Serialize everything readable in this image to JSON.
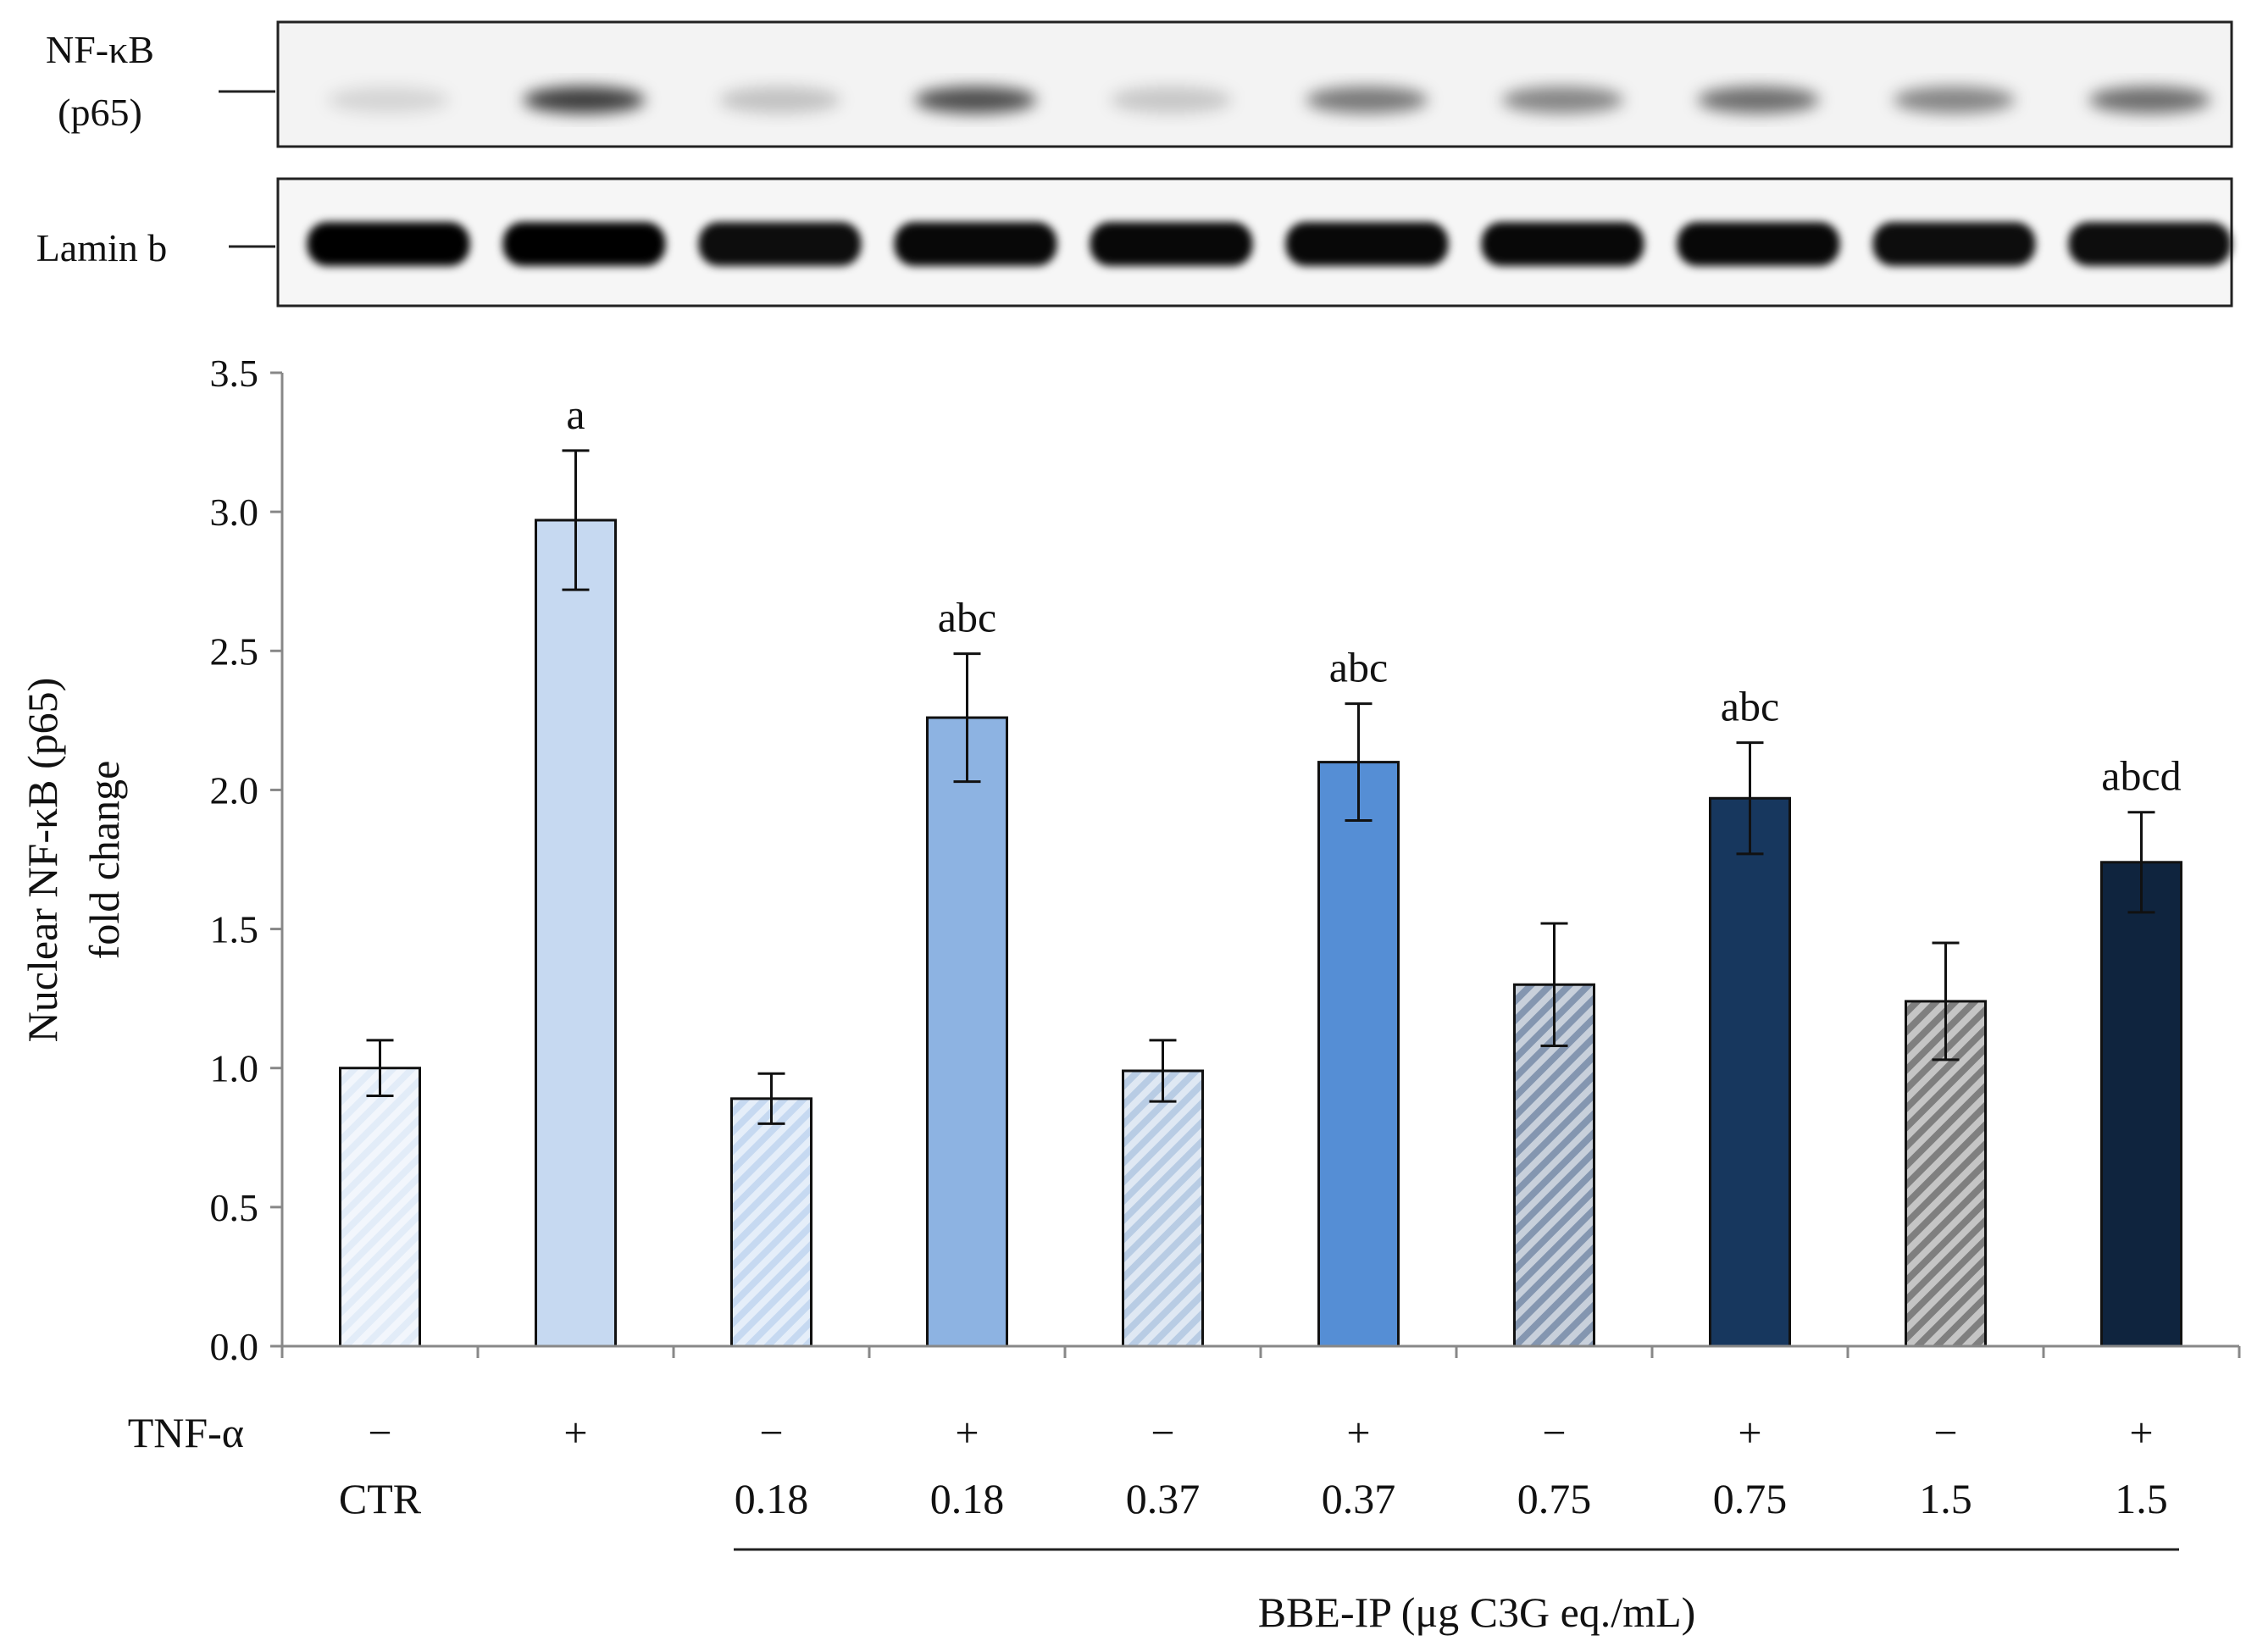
{
  "blots": {
    "nfkb_label_line1": "NF-κB",
    "nfkb_label_line2": "(p65)",
    "lamin_label": "Lamin b",
    "nfkb_band_intensity": [
      0.12,
      0.75,
      0.2,
      0.68,
      0.18,
      0.5,
      0.45,
      0.55,
      0.45,
      0.55
    ],
    "lamin_band_intensity": [
      1,
      1,
      0.95,
      0.97,
      0.97,
      0.97,
      0.97,
      0.97,
      0.95,
      0.95
    ]
  },
  "chart_data": {
    "type": "bar",
    "ylabel_line1": "Nuclear NF-κB (p65)",
    "ylabel_line2": "fold change",
    "ylim": [
      0,
      3.5
    ],
    "yticks": [
      "0.0",
      "0.5",
      "1.0",
      "1.5",
      "2.0",
      "2.5",
      "3.0",
      "3.5"
    ],
    "categories": [
      "CTR −",
      "CTR +",
      "0.18 −",
      "0.18 +",
      "0.37 −",
      "0.37 +",
      "0.75 −",
      "0.75 +",
      "1.5 −",
      "1.5 +"
    ],
    "values": [
      1.0,
      2.97,
      0.89,
      2.26,
      0.99,
      2.1,
      1.3,
      1.97,
      1.24,
      1.74
    ],
    "errors": [
      0.1,
      0.25,
      0.09,
      0.23,
      0.11,
      0.21,
      0.22,
      0.2,
      0.21,
      0.18
    ],
    "significance": [
      "",
      "a",
      "",
      "abc",
      "",
      "abc",
      "",
      "abc",
      "",
      "abcd"
    ],
    "colors": [
      "#e2ecf8",
      "#c6d9f1",
      "#c6d9f1",
      "#8db3e2",
      "#b8cce4",
      "#558ed5",
      "#8496b0",
      "#17375e",
      "#7f7f7f",
      "#0f243e"
    ],
    "hatched": [
      true,
      false,
      true,
      false,
      true,
      false,
      true,
      false,
      true,
      false
    ],
    "tnf_label": "TNF-α",
    "tnf_signs": [
      "−",
      "+",
      "−",
      "+",
      "−",
      "+",
      "−",
      "+",
      "−",
      "+"
    ],
    "concentrations": [
      "CTR",
      "",
      "0.18",
      "0.18",
      "0.37",
      "0.37",
      "0.75",
      "0.75",
      "1.5",
      "1.5"
    ],
    "group_label": "BBE-IP (μg C3G eq./mL)"
  }
}
